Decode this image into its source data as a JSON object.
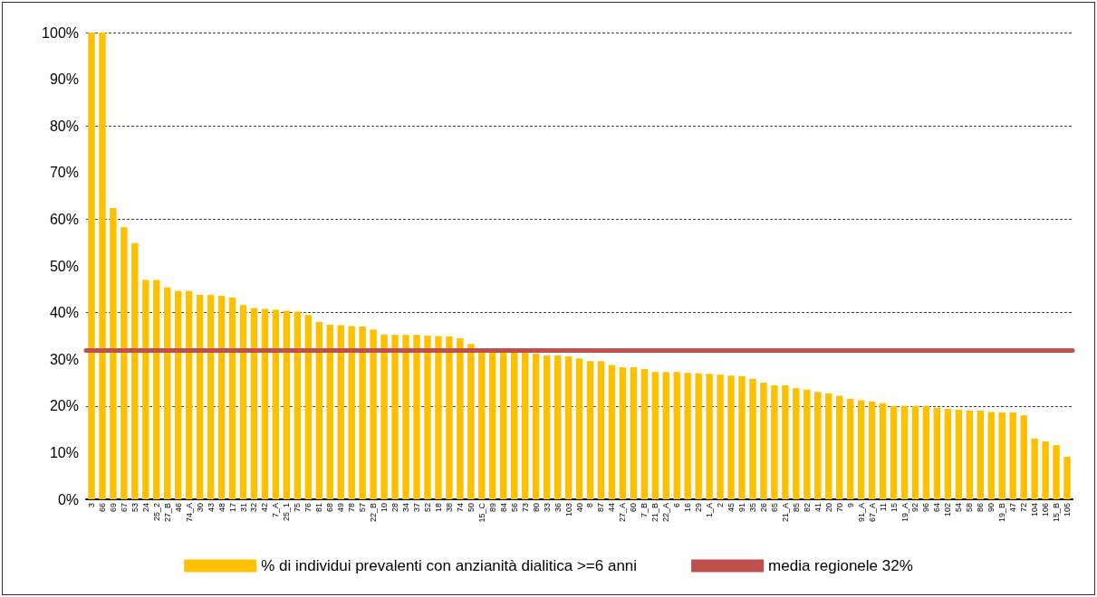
{
  "chart_data": {
    "type": "bar",
    "categories": [
      "3",
      "66",
      "69",
      "67",
      "53",
      "24",
      "25_2",
      "27_B",
      "46",
      "74_A",
      "30",
      "43",
      "48",
      "17",
      "31",
      "32",
      "42",
      "7_A",
      "25_1",
      "75",
      "76",
      "81",
      "68",
      "49",
      "78",
      "57",
      "22_B",
      "10",
      "28",
      "34",
      "37",
      "52",
      "18",
      "38",
      "74",
      "50",
      "15_C",
      "89",
      "84",
      "56",
      "73",
      "80",
      "33",
      "36",
      "103",
      "40",
      "8",
      "87",
      "44",
      "27_A",
      "60",
      "7_B",
      "21_B",
      "22_A",
      "6",
      "16",
      "29",
      "1_A",
      "2",
      "45",
      "91",
      "35",
      "26",
      "65",
      "21_A",
      "85",
      "82",
      "41",
      "20",
      "70",
      "9",
      "91_A",
      "67_A",
      "11",
      "15",
      "19_A",
      "92",
      "96",
      "64",
      "102",
      "54",
      "58",
      "86",
      "90",
      "19_B",
      "47",
      "72",
      "104",
      "106",
      "15_B",
      "105"
    ],
    "series": [
      {
        "name": "% di individui prevalenti con anzianità dialitica >=6 anni",
        "color": "#ffc000",
        "values": [
          100,
          100,
          62.4,
          58.3,
          54.9,
          47.0,
          47.0,
          45.4,
          44.6,
          44.6,
          43.8,
          43.8,
          43.6,
          43.2,
          41.6,
          41.0,
          40.8,
          40.6,
          40.4,
          40.2,
          39.5,
          38.0,
          37.4,
          37.3,
          37.1,
          37.0,
          36.4,
          35.3,
          35.2,
          35.2,
          35.2,
          35.1,
          35.0,
          34.9,
          34.5,
          33.3,
          32.0,
          31.9,
          31.8,
          31.5,
          31.5,
          31.2,
          30.8,
          30.8,
          30.6,
          30.2,
          29.6,
          29.6,
          28.8,
          28.3,
          28.3,
          27.9,
          27.3,
          27.3,
          27.3,
          27.1,
          27.0,
          26.9,
          26.7,
          26.5,
          26.4,
          25.8,
          25.0,
          24.4,
          24.4,
          23.8,
          23.5,
          23.0,
          22.7,
          22.2,
          21.5,
          21.2,
          21.0,
          20.6,
          20.0,
          20.0,
          20.0,
          20.0,
          19.6,
          19.4,
          19.2,
          19.0,
          19.0,
          18.7,
          18.6,
          18.6,
          18.0,
          13.0,
          12.4,
          11.6,
          9.1
        ]
      }
    ],
    "ylim": [
      0,
      100
    ],
    "yticks": [
      {
        "value": 0,
        "label": "0%"
      },
      {
        "value": 10,
        "label": "10%"
      },
      {
        "value": 20,
        "label": "20%"
      },
      {
        "value": 30,
        "label": "30%"
      },
      {
        "value": 40,
        "label": "40%"
      },
      {
        "value": 50,
        "label": "50%"
      },
      {
        "value": 60,
        "label": "60%"
      },
      {
        "value": 70,
        "label": "70%"
      },
      {
        "value": 80,
        "label": "80%"
      },
      {
        "value": 90,
        "label": "90%"
      },
      {
        "value": 100,
        "label": "100%"
      }
    ],
    "ref_lines": [
      {
        "axis": "y",
        "value": 32,
        "label": "media regionele 32%",
        "color": "#c0504d",
        "line_style": "solid"
      }
    ],
    "grid": "y",
    "legend": "bottom"
  }
}
